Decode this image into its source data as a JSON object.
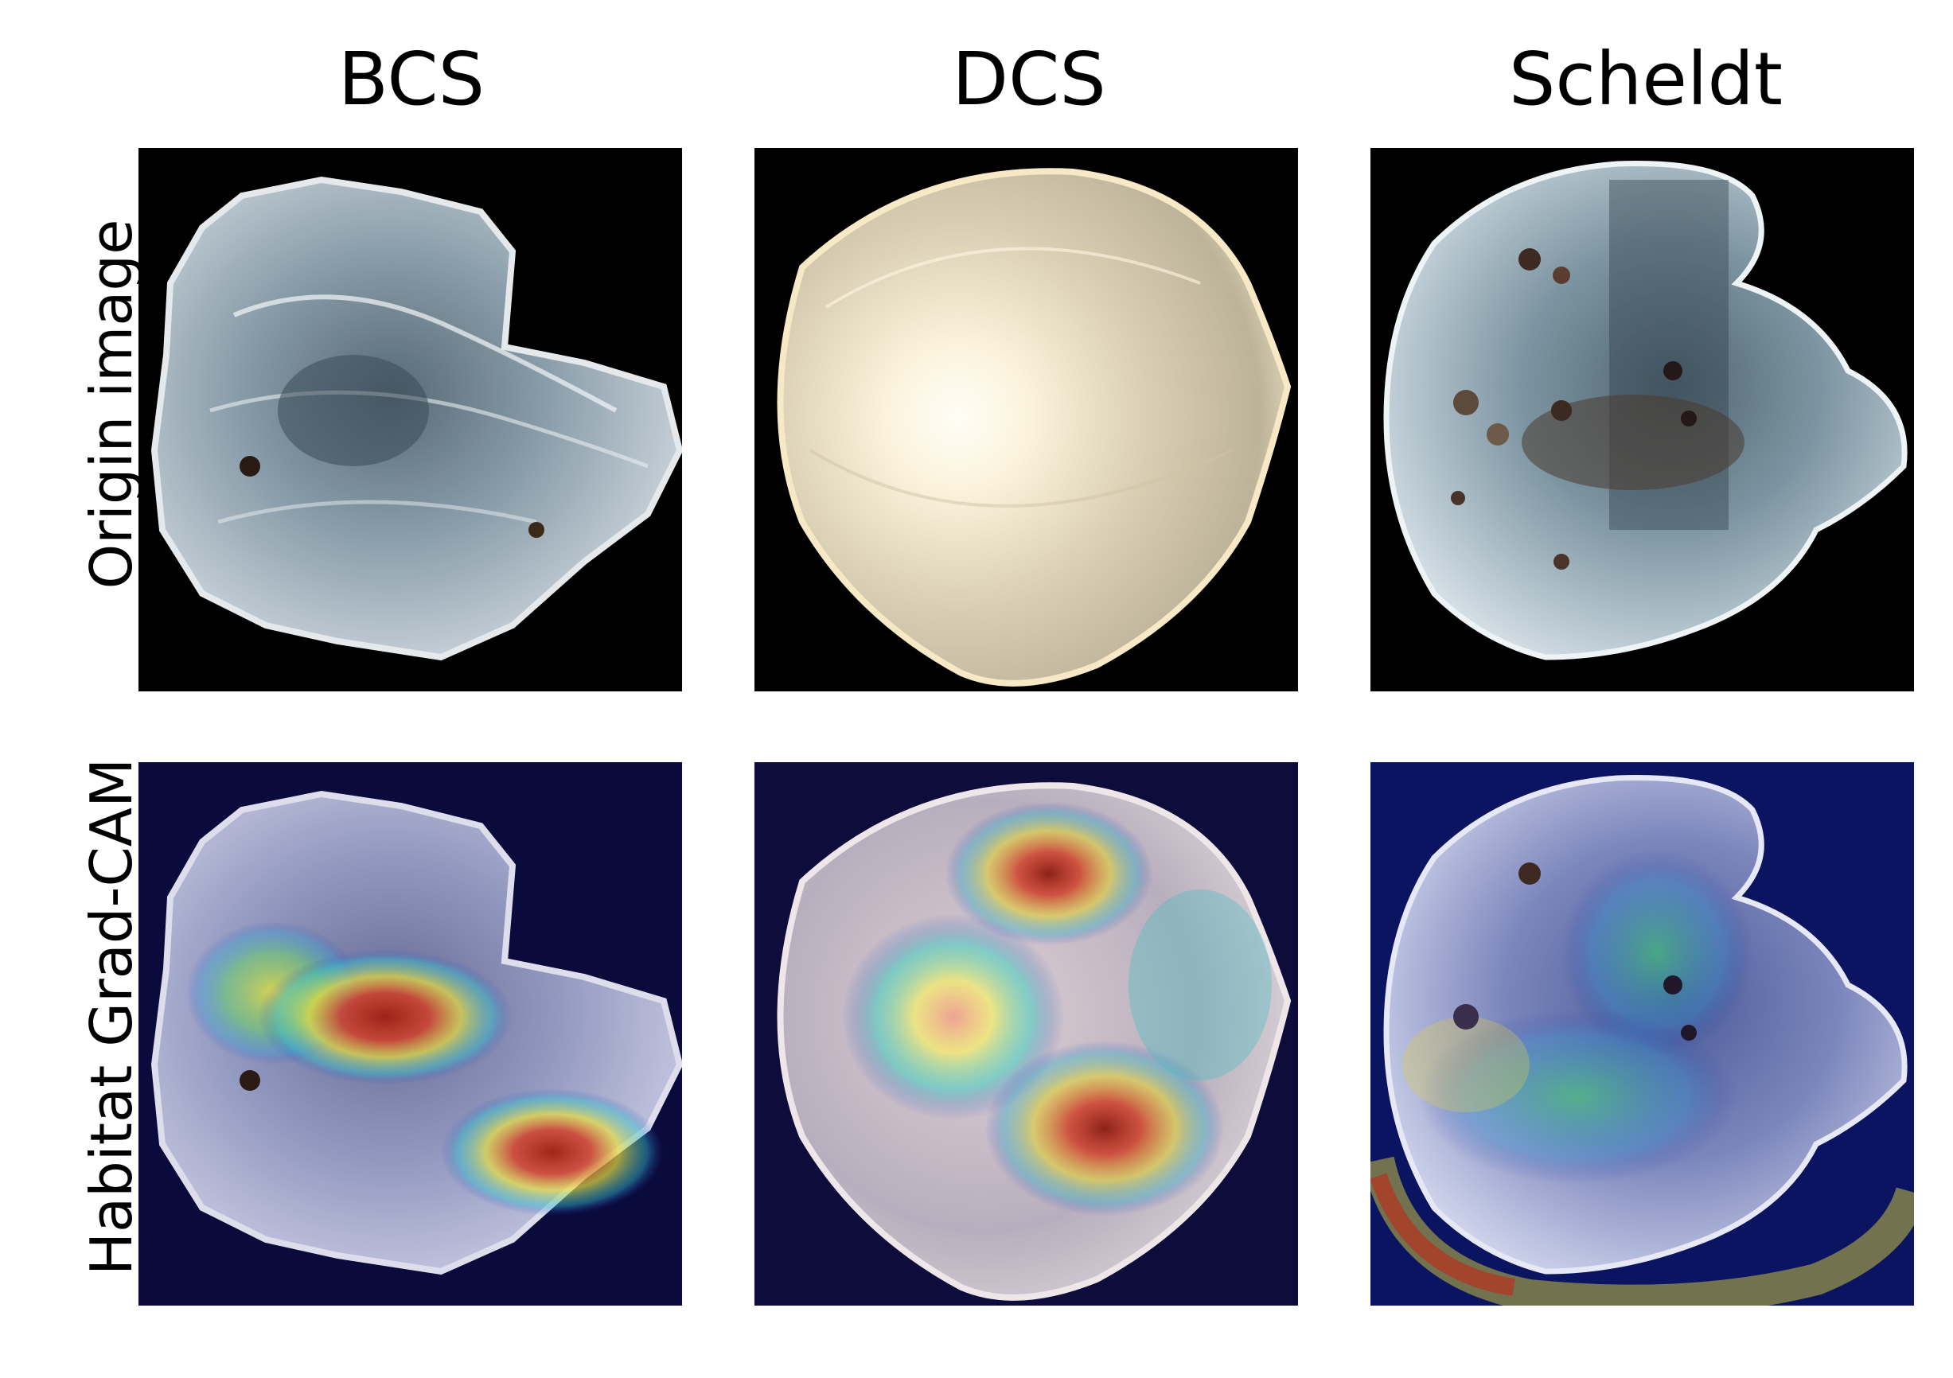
{
  "columns": [
    {
      "title": "BCS"
    },
    {
      "title": "DCS"
    },
    {
      "title": "Scheldt"
    }
  ],
  "rows": [
    {
      "label": "Origin image"
    },
    {
      "label": "Habitat Grad-CAM"
    }
  ],
  "colors": {
    "background": "#ffffff",
    "origin_background": "#000000",
    "gradcam_background": "#0a0a3c",
    "heat_high": "#b22a1a",
    "heat_mid": "#e8e040",
    "heat_low": "#30c0d0"
  }
}
